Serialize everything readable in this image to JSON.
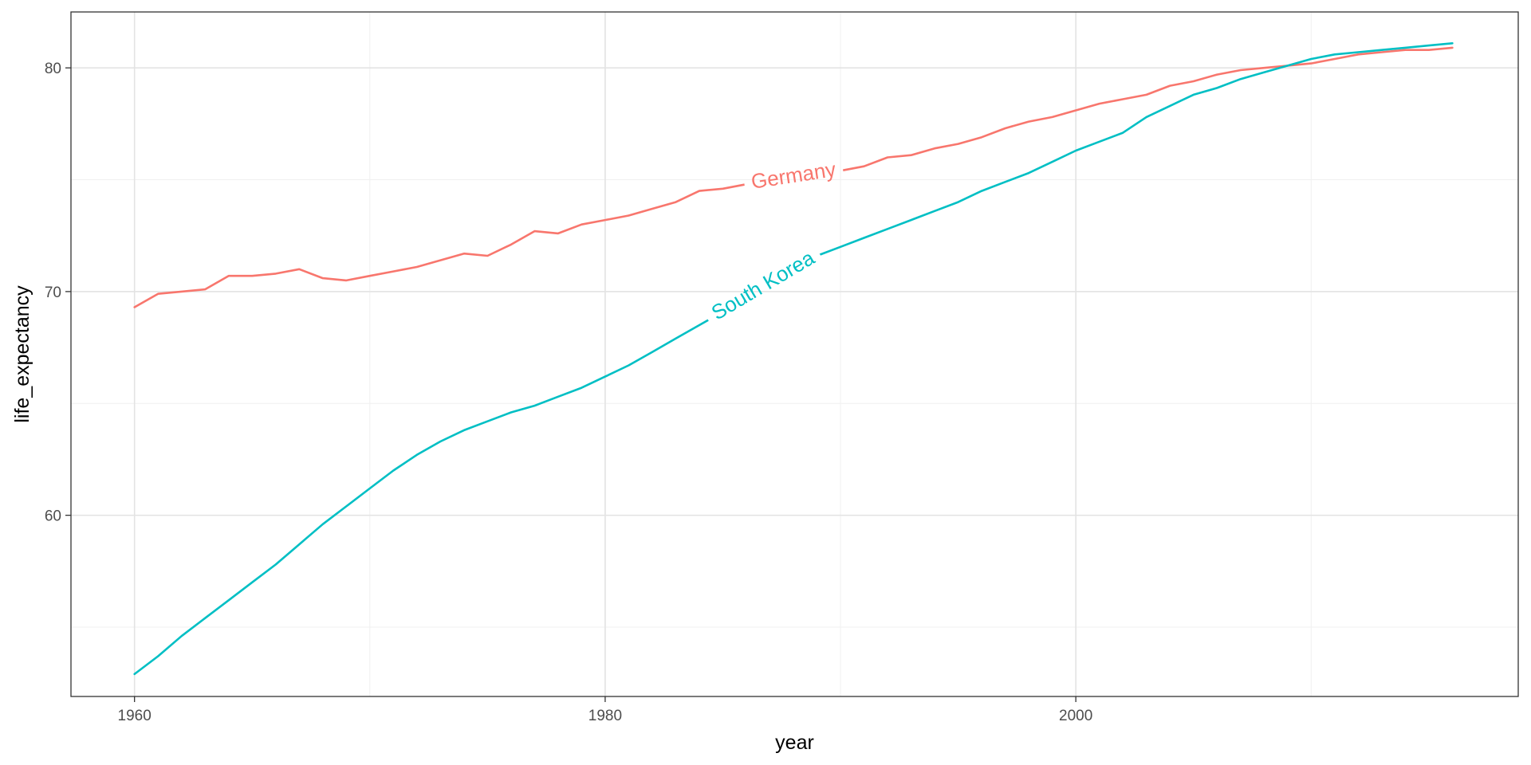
{
  "chart_data": {
    "type": "line",
    "title": "",
    "xlabel": "year",
    "ylabel": "life_expectancy",
    "xlim": [
      1957.3,
      2018.8
    ],
    "ylim": [
      51.9,
      82.5
    ],
    "x_ticks": [
      1960,
      1980,
      2000
    ],
    "x_minor_ticks": [
      1970,
      1990,
      2010
    ],
    "y_ticks": [
      60,
      70,
      80
    ],
    "y_minor_ticks": [
      55,
      65,
      75
    ],
    "grid": true,
    "legend": "none (direct labels on lines)",
    "x": [
      1960,
      1961,
      1962,
      1963,
      1964,
      1965,
      1966,
      1967,
      1968,
      1969,
      1970,
      1971,
      1972,
      1973,
      1974,
      1975,
      1976,
      1977,
      1978,
      1979,
      1980,
      1981,
      1982,
      1983,
      1984,
      1985,
      1986,
      1987,
      1988,
      1989,
      1990,
      1991,
      1992,
      1993,
      1994,
      1995,
      1996,
      1997,
      1998,
      1999,
      2000,
      2001,
      2002,
      2003,
      2004,
      2005,
      2006,
      2007,
      2008,
      2009,
      2010,
      2011,
      2012,
      2013,
      2014,
      2015,
      2016
    ],
    "series": [
      {
        "name": "Germany",
        "color": "#F8766D",
        "label_x": 1988,
        "values": [
          69.3,
          69.9,
          70.0,
          70.1,
          70.7,
          70.7,
          70.8,
          71.0,
          70.6,
          70.5,
          70.7,
          70.9,
          71.1,
          71.4,
          71.7,
          71.6,
          72.1,
          72.7,
          72.6,
          73.0,
          73.2,
          73.4,
          73.7,
          74.0,
          74.5,
          74.6,
          74.8,
          75.0,
          75.2,
          75.3,
          75.4,
          75.6,
          76.0,
          76.1,
          76.4,
          76.6,
          76.9,
          77.3,
          77.6,
          77.8,
          78.1,
          78.4,
          78.6,
          78.8,
          79.2,
          79.4,
          79.7,
          79.9,
          80.0,
          80.1,
          80.2,
          80.4,
          80.6,
          80.7,
          80.8,
          80.8,
          80.9
        ]
      },
      {
        "name": "South Korea",
        "color": "#00BFC4",
        "label_x": 1986.7,
        "values": [
          52.9,
          53.7,
          54.6,
          55.4,
          56.2,
          57.0,
          57.8,
          58.7,
          59.6,
          60.4,
          61.2,
          62.0,
          62.7,
          63.3,
          63.8,
          64.2,
          64.6,
          64.9,
          65.3,
          65.7,
          66.2,
          66.7,
          67.3,
          67.9,
          68.5,
          69.1,
          69.8,
          70.5,
          71.1,
          71.6,
          72.0,
          72.4,
          72.8,
          73.2,
          73.6,
          74.0,
          74.5,
          74.9,
          75.3,
          75.8,
          76.3,
          76.7,
          77.1,
          77.8,
          78.3,
          78.8,
          79.1,
          79.5,
          79.8,
          80.1,
          80.4,
          80.6,
          80.7,
          80.8,
          80.9,
          81.0,
          81.1
        ]
      }
    ]
  }
}
